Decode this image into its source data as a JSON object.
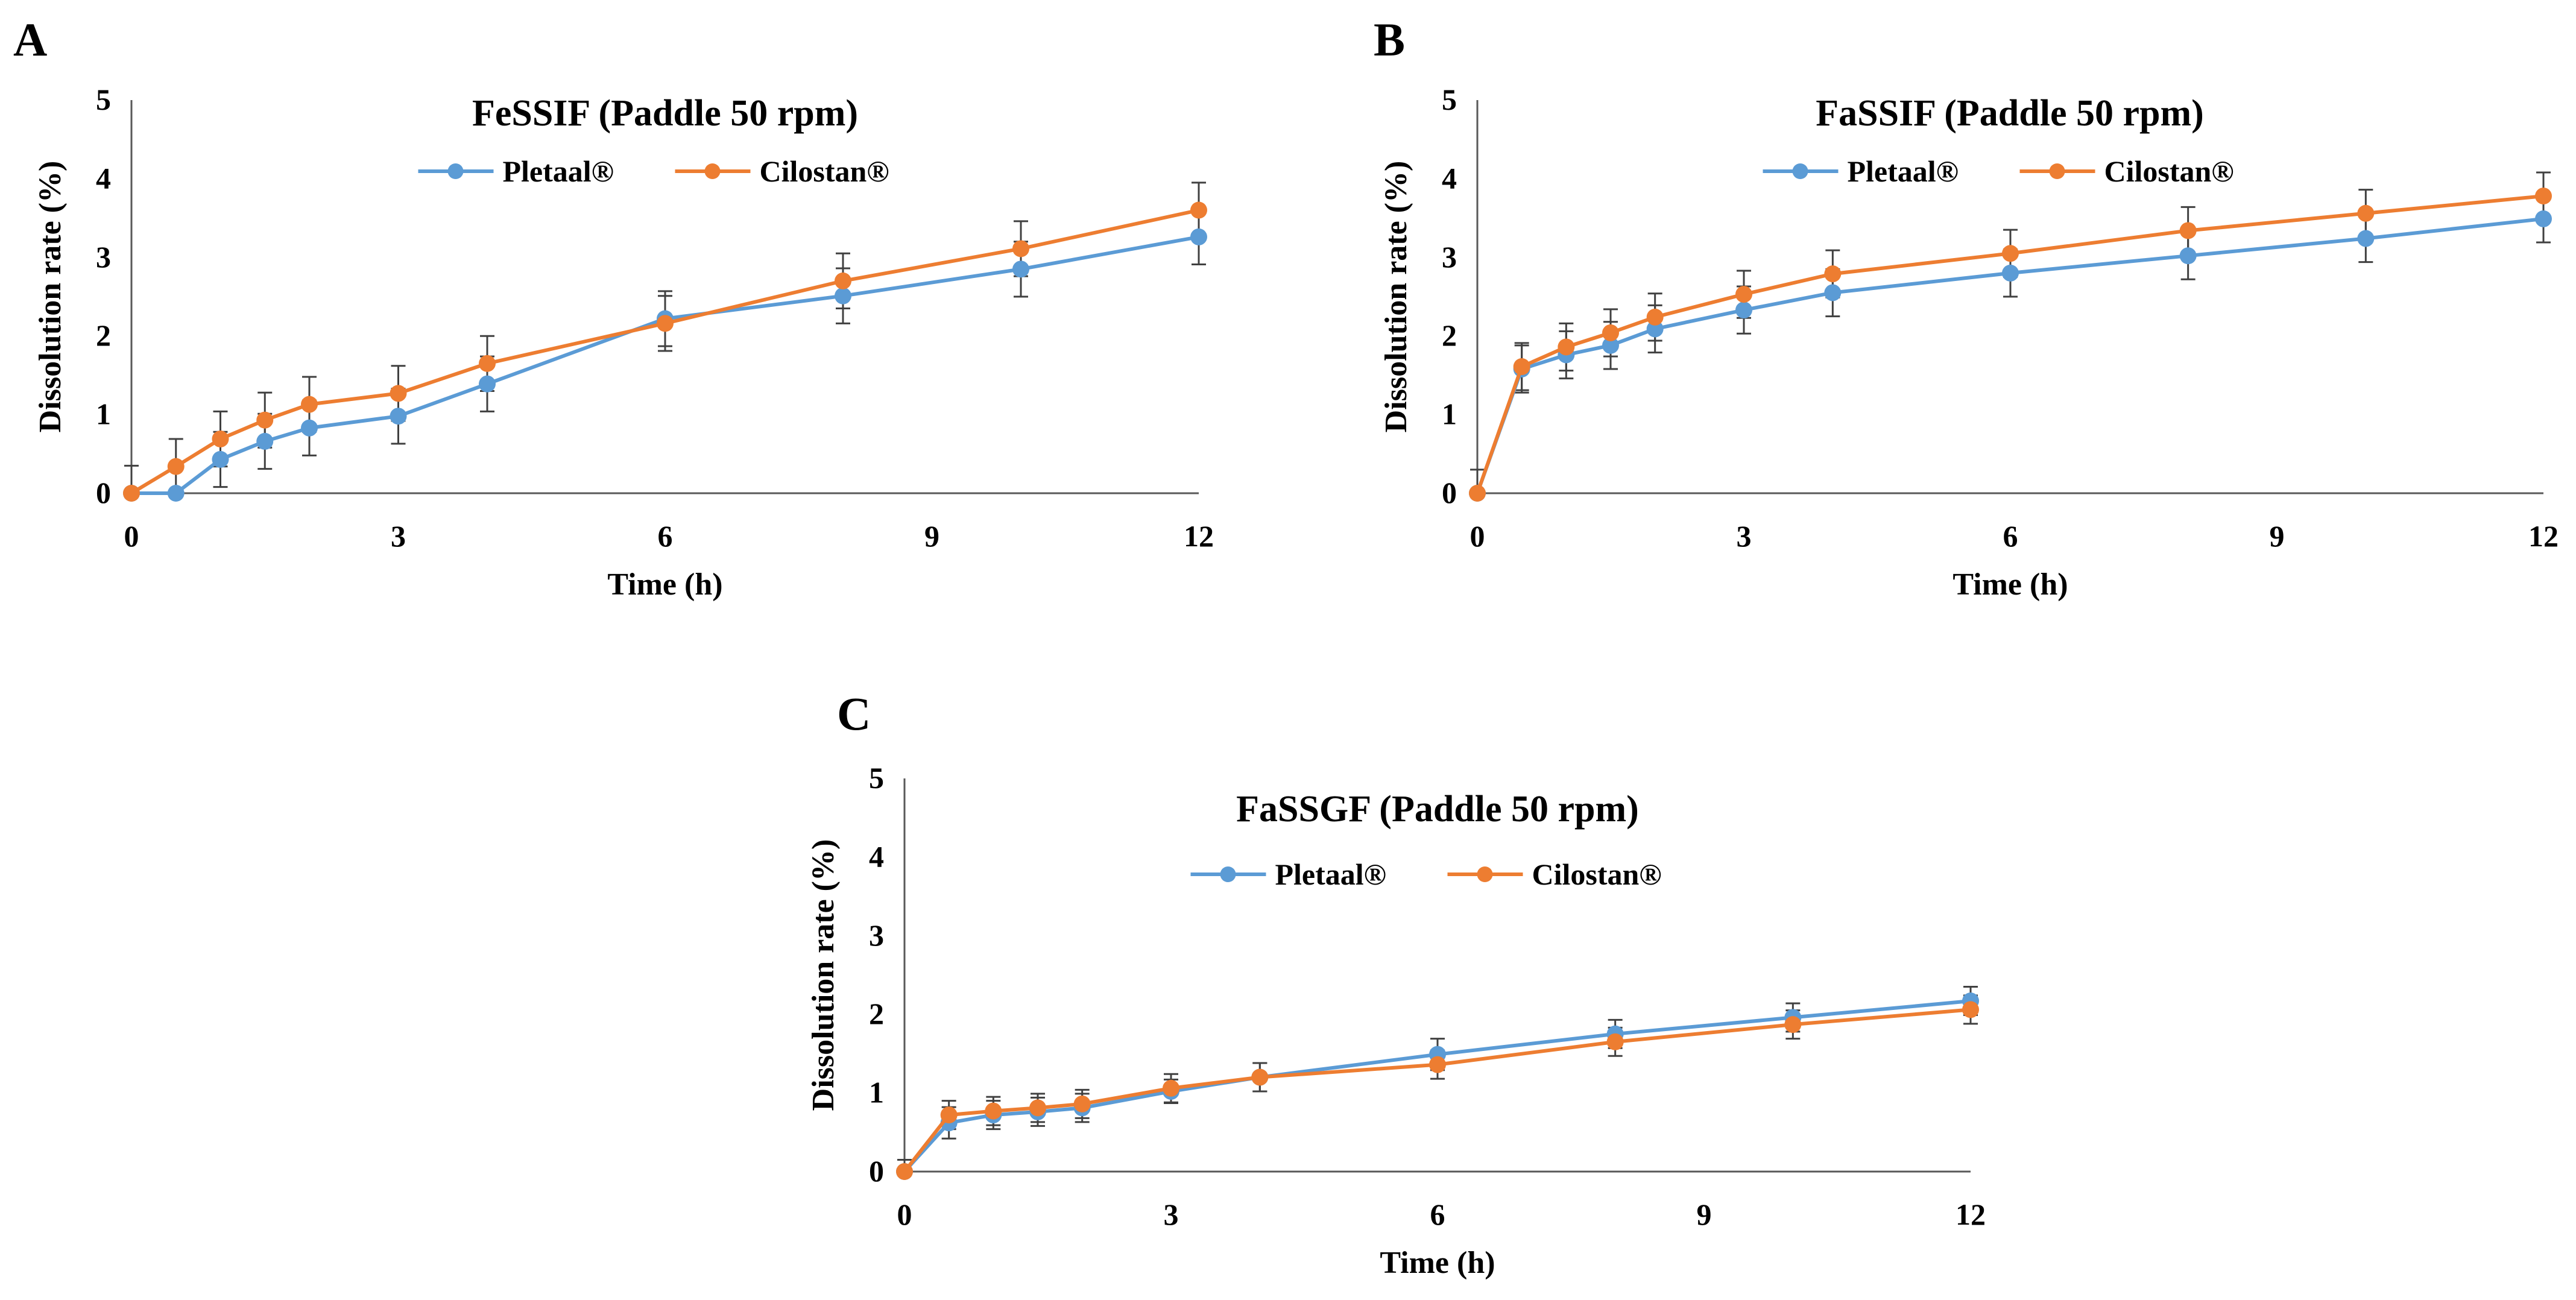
{
  "figure": {
    "panel_letters": [
      "A",
      "B",
      "C"
    ]
  },
  "colors": {
    "pletaal": "#5B9BD5",
    "cilostan": "#ED7D31",
    "axis": "#595959",
    "error_bar": "#404040"
  },
  "chart_data": [
    {
      "type": "line",
      "panel": "A",
      "title": "FeSSIF (Paddle 50 rpm)",
      "xlabel": "Time (h)",
      "ylabel": "Dissolution rate (%)",
      "xlim": [
        0,
        12
      ],
      "ylim": [
        0,
        5
      ],
      "xticks": [
        0,
        3,
        6,
        9,
        12
      ],
      "yticks": [
        0,
        1,
        2,
        3,
        4,
        5
      ],
      "grid": false,
      "legend": "top-center",
      "x": [
        0,
        0.5,
        1,
        1.5,
        2,
        3,
        4,
        6,
        8,
        10,
        12
      ],
      "series": [
        {
          "name": "Pletaal®",
          "color": "#5B9BD5",
          "values": [
            0,
            0,
            0.43,
            0.66,
            0.83,
            0.98,
            1.39,
            2.22,
            2.51,
            2.85,
            3.26
          ],
          "errors": [
            0.35,
            0,
            0.35,
            0.35,
            0.35,
            0.35,
            0.35,
            0.35,
            0.35,
            0.35,
            0.35
          ]
        },
        {
          "name": "Cilostan®",
          "color": "#ED7D31",
          "values": [
            0,
            0.34,
            0.69,
            0.93,
            1.13,
            1.27,
            1.65,
            2.16,
            2.7,
            3.11,
            3.6
          ],
          "errors": [
            0,
            0.35,
            0.35,
            0.35,
            0.35,
            0.35,
            0.35,
            0.35,
            0.35,
            0.35,
            0.35
          ]
        }
      ]
    },
    {
      "type": "line",
      "panel": "B",
      "title": "FaSSIF (Paddle 50 rpm)",
      "xlabel": "Time (h)",
      "ylabel": "Dissolution rate (%)",
      "xlim": [
        0,
        12
      ],
      "ylim": [
        0,
        5
      ],
      "xticks": [
        0,
        3,
        6,
        9,
        12
      ],
      "yticks": [
        0,
        1,
        2,
        3,
        4,
        5
      ],
      "grid": false,
      "legend": "top-center",
      "x": [
        0,
        0.5,
        1,
        1.5,
        2,
        3,
        4,
        6,
        8,
        10,
        12
      ],
      "series": [
        {
          "name": "Pletaal®",
          "color": "#5B9BD5",
          "values": [
            0,
            1.58,
            1.76,
            1.88,
            2.09,
            2.33,
            2.55,
            2.8,
            3.02,
            3.24,
            3.49
          ],
          "errors": [
            0.3,
            0.3,
            0.3,
            0.3,
            0.3,
            0.3,
            0.3,
            0.3,
            0.3,
            0.3,
            0.3
          ]
        },
        {
          "name": "Cilostan®",
          "color": "#ED7D31",
          "values": [
            0,
            1.61,
            1.86,
            2.04,
            2.24,
            2.53,
            2.79,
            3.05,
            3.34,
            3.56,
            3.78
          ],
          "errors": [
            0,
            0.3,
            0.3,
            0.3,
            0.3,
            0.3,
            0.3,
            0.3,
            0.3,
            0.3,
            0.3
          ]
        }
      ]
    },
    {
      "type": "line",
      "panel": "C",
      "title": "FaSSGF  (Paddle 50 rpm)",
      "xlabel": "Time (h)",
      "ylabel": "Dissolution rate (%)",
      "xlim": [
        0,
        12
      ],
      "ylim": [
        0,
        5
      ],
      "xticks": [
        0,
        3,
        6,
        9,
        12
      ],
      "yticks": [
        0,
        1,
        2,
        3,
        4,
        5
      ],
      "grid": false,
      "legend": "top-center",
      "x": [
        0,
        0.5,
        1,
        1.5,
        2,
        3,
        4,
        6,
        8,
        10,
        12
      ],
      "series": [
        {
          "name": "Pletaal®",
          "color": "#5B9BD5",
          "values": [
            0,
            0.62,
            0.72,
            0.76,
            0.81,
            1.02,
            1.2,
            1.49,
            1.75,
            1.96,
            2.17
          ],
          "errors": [
            0.15,
            0.2,
            0.18,
            0.18,
            0.18,
            0.15,
            0.18,
            0.2,
            0.18,
            0.18,
            0.18
          ]
        },
        {
          "name": "Cilostan®",
          "color": "#ED7D31",
          "values": [
            0,
            0.72,
            0.77,
            0.81,
            0.86,
            1.06,
            1.2,
            1.36,
            1.65,
            1.87,
            2.06
          ],
          "errors": [
            0,
            0.18,
            0.18,
            0.18,
            0.18,
            0.18,
            0.18,
            0.18,
            0.18,
            0.18,
            0.18
          ]
        }
      ]
    }
  ]
}
